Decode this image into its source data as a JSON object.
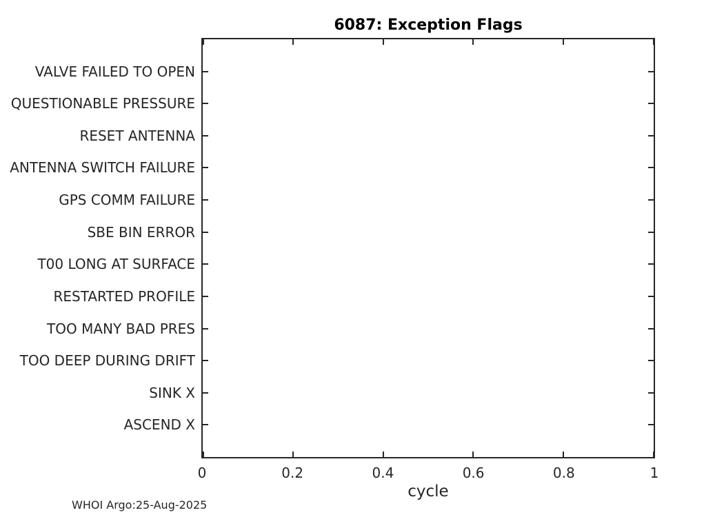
{
  "figure": {
    "title": "6087: Exception Flags",
    "footer": "WHOI Argo:25-Aug-2025"
  },
  "chart_data": {
    "type": "scatter",
    "title": "6087: Exception Flags",
    "xlabel": "cycle",
    "ylabel": "",
    "xlim": [
      0,
      1
    ],
    "x_ticks": [
      0,
      0.2,
      0.4,
      0.6,
      0.8,
      1
    ],
    "x_tick_labels": [
      "0",
      "0.2",
      "0.4",
      "0.6",
      "0.8",
      "1"
    ],
    "category_order": "top-to-bottom",
    "categories": [
      "VALVE FAILED TO OPEN",
      "QUESTIONABLE PRESSURE",
      "RESET ANTENNA",
      "ANTENNA SWITCH FAILURE",
      "GPS COMM FAILURE",
      "SBE BIN ERROR",
      "T00 LONG AT SURFACE",
      "RESTARTED PROFILE",
      "TOO MANY BAD PRES",
      "TOO DEEP DURING DRIFT",
      "SINK X",
      "ASCEND X"
    ],
    "series": [],
    "grid": false,
    "tick_direction": "in",
    "box": true,
    "axis_color": "#262626",
    "background_color": "#ffffff",
    "annotation": "WHOI Argo:25-Aug-2025"
  }
}
